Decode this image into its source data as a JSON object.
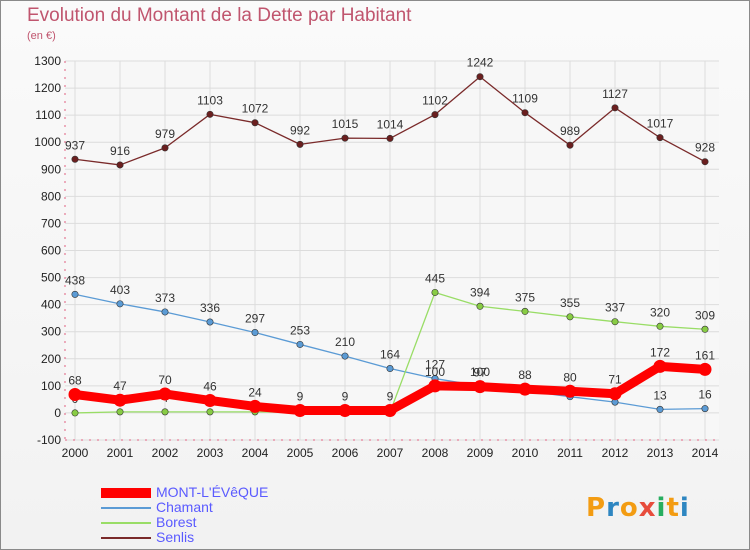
{
  "title": "Evolution du Montant de la Dette par Habitant",
  "subtitle": "(en €)",
  "logo": {
    "letters": [
      "P",
      "r",
      "o",
      "x",
      "i",
      "t",
      "i"
    ],
    "colors": [
      "#f39c12",
      "#2e86c1",
      "#f39c12",
      "#e74c3c",
      "#27ae60",
      "#f39c12",
      "#2e86c1"
    ]
  },
  "chart_data": {
    "type": "line",
    "x": [
      "2000",
      "2001",
      "2002",
      "2003",
      "2004",
      "2005",
      "2006",
      "2007",
      "2008",
      "2009",
      "2010",
      "2011",
      "2012",
      "2013",
      "2014"
    ],
    "yticks": [
      "1300",
      "1200",
      "1100",
      "1000",
      "900",
      "800",
      "700",
      "600",
      "500",
      "400",
      "300",
      "200",
      "100",
      "0",
      "-100"
    ],
    "ylim": [
      -100,
      1300
    ],
    "grid": true,
    "legend": "bottom-left",
    "series": [
      {
        "name": "Senlis",
        "color": "#7a2a2a",
        "marker": "#6b1f1f",
        "values": [
          937,
          916,
          979,
          1103,
          1072,
          992,
          1015,
          1014,
          1102,
          1242,
          1109,
          989,
          1127,
          1017,
          928
        ],
        "labels": [
          "937",
          "916",
          "979",
          "1103",
          "1072",
          "992",
          "1015",
          "1014",
          "1102",
          "1242",
          "1109",
          "989",
          "1127",
          "1017",
          "928"
        ]
      },
      {
        "name": "Chamant",
        "color": "#5b9bd5",
        "marker": "#5b9bd5",
        "values": [
          438,
          403,
          373,
          336,
          297,
          253,
          210,
          164,
          127,
          100,
          82,
          60,
          40,
          13,
          16
        ],
        "labels": [
          "438",
          "403",
          "373",
          "336",
          "297",
          "253",
          "210",
          "164",
          "127",
          "100",
          "",
          "",
          "",
          "13",
          "16"
        ]
      },
      {
        "name": "Borest",
        "color": "#99dd66",
        "marker": "#88cc44",
        "values": [
          0,
          4,
          4,
          4,
          4,
          2,
          1,
          2,
          445,
          394,
          375,
          355,
          337,
          320,
          309
        ],
        "labels": [
          "0",
          "",
          "4",
          "",
          "",
          "",
          "",
          "",
          "445",
          "394",
          "375",
          "355",
          "337",
          "320",
          "309"
        ]
      },
      {
        "name": "MONT-L'ÉVêQUE",
        "color": "#ff0000",
        "marker": "#ff0000",
        "values": [
          68,
          47,
          70,
          46,
          24,
          9,
          9,
          9,
          100,
          97,
          88,
          80,
          71,
          172,
          161
        ],
        "labels": [
          "68",
          "47",
          "70",
          "46",
          "24",
          "9",
          "9",
          "9",
          "100",
          "97",
          "88",
          "80",
          "71",
          "172",
          "161"
        ]
      }
    ],
    "legend_entries": [
      "MONT-L'ÉVêQUE",
      "Chamant",
      "Borest",
      "Senlis"
    ]
  }
}
